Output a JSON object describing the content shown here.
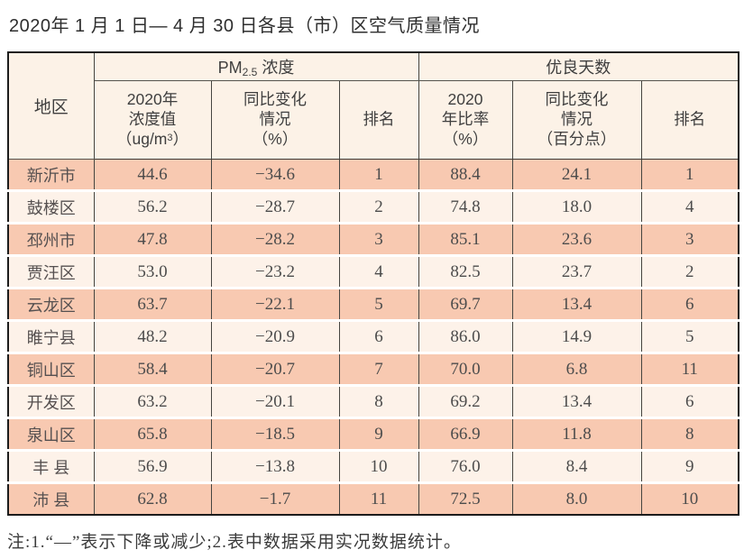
{
  "page": {
    "title": "2020年 1 月 1 日— 4 月 30 日各县（市）区空气质量情况"
  },
  "table": {
    "corner_header": "地区",
    "groups": {
      "pm25": {
        "label_main": "PM",
        "label_sub": "2.5",
        "label_rest": " 浓度"
      },
      "good_days": {
        "label": "优良天数"
      }
    },
    "subheaders": {
      "pm_value": {
        "line1": "2020年",
        "line2": "浓度值",
        "unit_pre": "（ug/m",
        "unit_sup": "3",
        "unit_post": "）"
      },
      "pm_change": {
        "line1": "同比变化",
        "line2": "情况",
        "line3": "（%）"
      },
      "pm_rank": "排名",
      "good_ratio": {
        "line1": "2020",
        "line2": "年比率",
        "line3": "（%）"
      },
      "good_change": {
        "line1": "同比变化",
        "line2": "情况",
        "line3": "（百分点）"
      },
      "good_rank": "排名"
    },
    "rows": [
      {
        "region": "新沂市",
        "pm_value": "44.6",
        "pm_change": "−34.6",
        "pm_rank": "1",
        "good_ratio": "88.4",
        "good_change": "24.1",
        "good_rank": "1"
      },
      {
        "region": "鼓楼区",
        "pm_value": "56.2",
        "pm_change": "−28.7",
        "pm_rank": "2",
        "good_ratio": "74.8",
        "good_change": "18.0",
        "good_rank": "4"
      },
      {
        "region": "邳州市",
        "pm_value": "47.8",
        "pm_change": "−28.2",
        "pm_rank": "3",
        "good_ratio": "85.1",
        "good_change": "23.6",
        "good_rank": "3"
      },
      {
        "region": "贾汪区",
        "pm_value": "53.0",
        "pm_change": "−23.2",
        "pm_rank": "4",
        "good_ratio": "82.5",
        "good_change": "23.7",
        "good_rank": "2"
      },
      {
        "region": "云龙区",
        "pm_value": "63.7",
        "pm_change": "−22.1",
        "pm_rank": "5",
        "good_ratio": "69.7",
        "good_change": "13.4",
        "good_rank": "6"
      },
      {
        "region": "睢宁县",
        "pm_value": "48.2",
        "pm_change": "−20.9",
        "pm_rank": "6",
        "good_ratio": "86.0",
        "good_change": "14.9",
        "good_rank": "5"
      },
      {
        "region": "铜山区",
        "pm_value": "58.4",
        "pm_change": "−20.7",
        "pm_rank": "7",
        "good_ratio": "70.0",
        "good_change": "6.8",
        "good_rank": "11"
      },
      {
        "region": "开发区",
        "pm_value": "63.2",
        "pm_change": "−20.1",
        "pm_rank": "8",
        "good_ratio": "69.2",
        "good_change": "13.4",
        "good_rank": "6"
      },
      {
        "region": "泉山区",
        "pm_value": "65.8",
        "pm_change": "−18.5",
        "pm_rank": "9",
        "good_ratio": "66.9",
        "good_change": "11.8",
        "good_rank": "8"
      },
      {
        "region": "丰 县",
        "pm_value": "56.9",
        "pm_change": "−13.8",
        "pm_rank": "10",
        "good_ratio": "76.0",
        "good_change": "8.4",
        "good_rank": "9"
      },
      {
        "region": "沛 县",
        "pm_value": "62.8",
        "pm_change": "−1.7",
        "pm_rank": "11",
        "good_ratio": "72.5",
        "good_change": "8.0",
        "good_rank": "10"
      }
    ]
  },
  "note": "注:1.“—”表示下降或减少;2.表中数据采用实况数据统计。",
  "colors": {
    "row_salmon": "#f8c9b1",
    "row_light": "#fdf2e9",
    "header_bg": "#fcf2e7",
    "outer_border": "#1c1c1c",
    "inner_border": "#454540"
  }
}
